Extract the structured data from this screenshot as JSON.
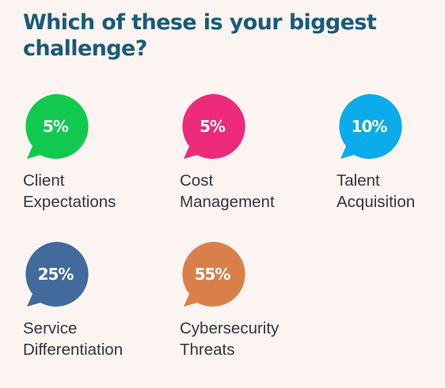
{
  "chart_data": {
    "type": "table",
    "title": "Which of these is your biggest challenge?",
    "items": [
      {
        "value": "5%",
        "label_lines": [
          "Client",
          "Expectations"
        ],
        "color": "#12c94f"
      },
      {
        "value": "5%",
        "label_lines": [
          "Cost",
          "Management"
        ],
        "color": "#ee2a7b"
      },
      {
        "value": "10%",
        "label_lines": [
          "Talent",
          "Acquisition"
        ],
        "color": "#0aacea"
      },
      {
        "value": "25%",
        "label_lines": [
          "Service",
          "Differentiation"
        ],
        "color": "#426a9c"
      },
      {
        "value": "55%",
        "label_lines": [
          "Cybersecurity",
          "Threats"
        ],
        "color": "#d9804a"
      }
    ]
  }
}
